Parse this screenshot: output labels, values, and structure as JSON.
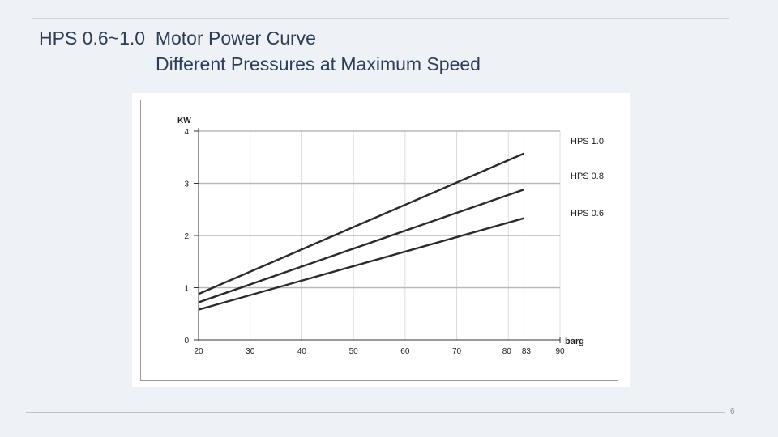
{
  "slide": {
    "title_line1": "HPS 0.6~1.0  Motor Power Curve",
    "title_line2": "Different Pressures at Maximum Speed",
    "page_number": "6"
  },
  "chart_data": {
    "type": "line",
    "title": "",
    "xlabel": "barg",
    "ylabel": "KW",
    "xlim": [
      20,
      90
    ],
    "ylim": [
      0,
      4
    ],
    "x_ticks": [
      20,
      30,
      40,
      50,
      60,
      70,
      80,
      83,
      90
    ],
    "y_ticks": [
      0,
      1,
      2,
      3,
      4
    ],
    "grid": true,
    "legend": "right-inline",
    "series": [
      {
        "name": "HPS 1.0",
        "x": [
          20,
          83
        ],
        "y": [
          0.88,
          3.57
        ]
      },
      {
        "name": "HPS 0.8",
        "x": [
          20,
          83
        ],
        "y": [
          0.72,
          2.88
        ]
      },
      {
        "name": "HPS 0.6",
        "x": [
          20,
          83
        ],
        "y": [
          0.58,
          2.33
        ]
      }
    ],
    "colors": {
      "line": "#2a2a2a",
      "grid_major": "#b9b9b9",
      "grid_minor": "#dcdcdc",
      "border": "#9a9a9a"
    }
  }
}
